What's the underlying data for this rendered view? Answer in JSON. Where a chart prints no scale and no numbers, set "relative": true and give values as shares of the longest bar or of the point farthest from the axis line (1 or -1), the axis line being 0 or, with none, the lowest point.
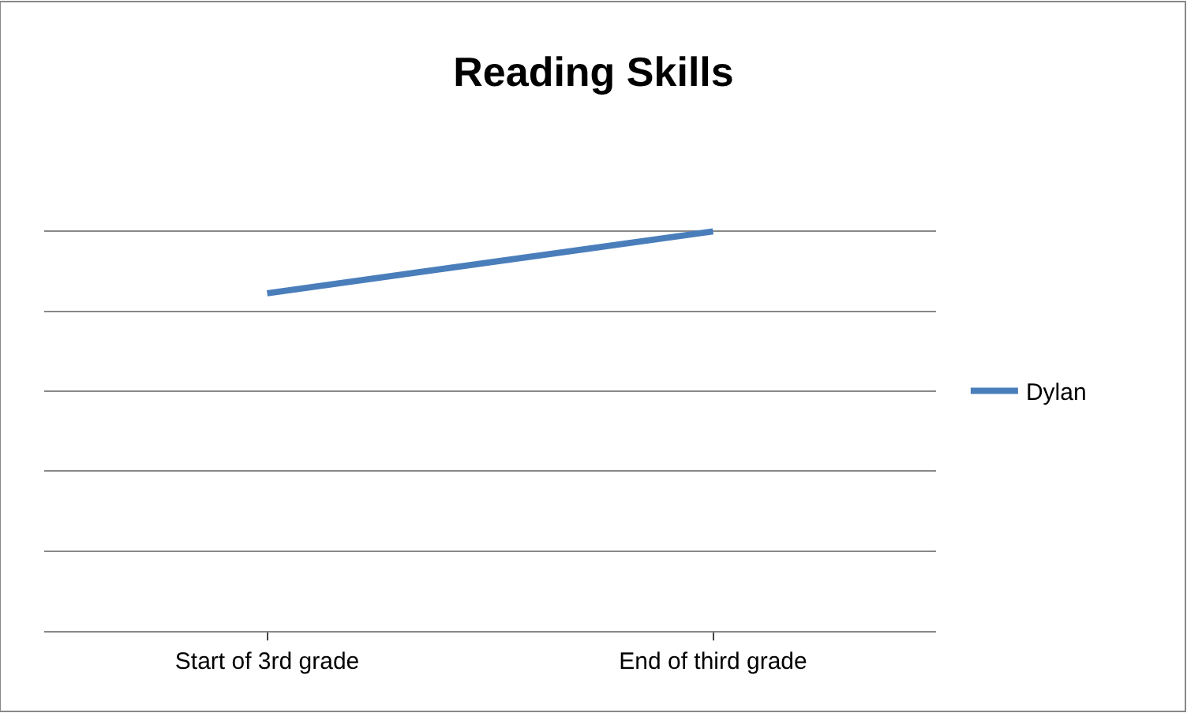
{
  "chart_data": {
    "type": "line",
    "title": "Reading Skills",
    "relative": true,
    "categories": [
      "Start of 3rd grade",
      "End of third grade"
    ],
    "series": [
      {
        "name": "Dylan",
        "color": "#4a7ebb",
        "values": [
          0.845,
          1
        ]
      }
    ],
    "grid": "y",
    "legend": "right",
    "marker": "none",
    "line_style": "solid"
  }
}
